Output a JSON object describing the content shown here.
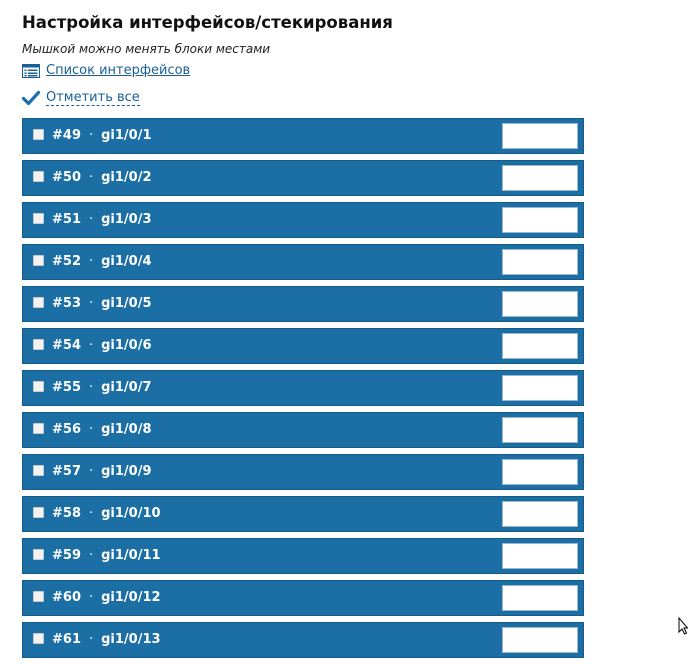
{
  "page": {
    "title": "Настройка интерфейсов/стекирования",
    "hint": "Мышкой можно менять блоки местами",
    "list_link": "Список интерфейсов",
    "list_icon": "list-icon",
    "mark_all": "Отметить все",
    "mark_all_icon": "checkmark-icon"
  },
  "interfaces": [
    {
      "num": "#49",
      "name": "gi1/0/1",
      "checked": false,
      "value": ""
    },
    {
      "num": "#50",
      "name": "gi1/0/2",
      "checked": false,
      "value": ""
    },
    {
      "num": "#51",
      "name": "gi1/0/3",
      "checked": false,
      "value": ""
    },
    {
      "num": "#52",
      "name": "gi1/0/4",
      "checked": false,
      "value": ""
    },
    {
      "num": "#53",
      "name": "gi1/0/5",
      "checked": false,
      "value": ""
    },
    {
      "num": "#54",
      "name": "gi1/0/6",
      "checked": false,
      "value": ""
    },
    {
      "num": "#55",
      "name": "gi1/0/7",
      "checked": false,
      "value": ""
    },
    {
      "num": "#56",
      "name": "gi1/0/8",
      "checked": false,
      "value": ""
    },
    {
      "num": "#57",
      "name": "gi1/0/9",
      "checked": false,
      "value": ""
    },
    {
      "num": "#58",
      "name": "gi1/0/10",
      "checked": false,
      "value": ""
    },
    {
      "num": "#59",
      "name": "gi1/0/11",
      "checked": false,
      "value": ""
    },
    {
      "num": "#60",
      "name": "gi1/0/12",
      "checked": false,
      "value": ""
    },
    {
      "num": "#61",
      "name": "gi1/0/13",
      "checked": false,
      "value": ""
    }
  ],
  "separator": "·",
  "colors": {
    "row_bg": "#1c6fa4",
    "link": "#1a5f95"
  }
}
